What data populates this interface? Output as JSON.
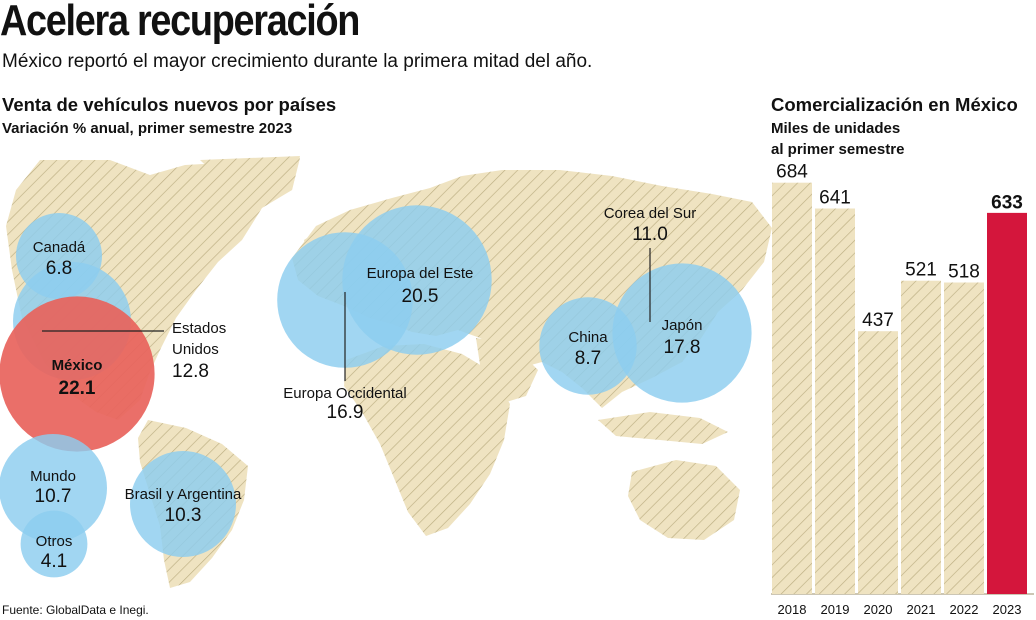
{
  "header": {
    "title": "Acelera recuperación",
    "subtitle": "México reportó el mayor crecimiento durante la primera mitad del año."
  },
  "map_section": {
    "title": "Venta de vehículos nuevos por países",
    "subtitle": "Variación % anual, primer semestre 2023"
  },
  "bar_section": {
    "title": "Comercialización en México",
    "subtitle_line1": "Miles de unidades",
    "subtitle_line2": "al primer semestre"
  },
  "source": "Fuente: GlobalData e Inegi.",
  "colors": {
    "bubble": "#8ccdef",
    "highlight": "#e8635c",
    "land": "#efe3c1",
    "hatch": "#bcae82",
    "bar_highlight": "#d4163c"
  },
  "chart_data": [
    {
      "type": "bubble",
      "title": "Venta de vehículos nuevos por países",
      "subtitle": "Variación % anual, primer semestre 2023",
      "unit": "%",
      "series": [
        {
          "name": "Canadá",
          "value": 6.8
        },
        {
          "name": "Estados Unidos",
          "value": 12.8
        },
        {
          "name": "México",
          "value": 22.1,
          "highlight": true
        },
        {
          "name": "Mundo",
          "value": 10.7
        },
        {
          "name": "Otros",
          "value": 4.1
        },
        {
          "name": "Brasil y Argentina",
          "value": 10.3
        },
        {
          "name": "Europa del Este",
          "value": 20.5
        },
        {
          "name": "Europa Occidental",
          "value": 16.9
        },
        {
          "name": "Corea del Sur",
          "value": 11.0
        },
        {
          "name": "China",
          "value": 8.7
        },
        {
          "name": "Japón",
          "value": 17.8
        }
      ]
    },
    {
      "type": "bar",
      "title": "Comercialización en México",
      "subtitle": "Miles de unidades al primer semestre",
      "categories": [
        "2018",
        "2019",
        "2020",
        "2021",
        "2022",
        "2023"
      ],
      "values": [
        684,
        641,
        437,
        521,
        518,
        633
      ],
      "value_labels": [
        "684",
        "641",
        "437",
        "521",
        "518",
        "633"
      ],
      "highlight_category": "2023",
      "ylim": [
        0,
        720
      ],
      "grid": false
    }
  ]
}
